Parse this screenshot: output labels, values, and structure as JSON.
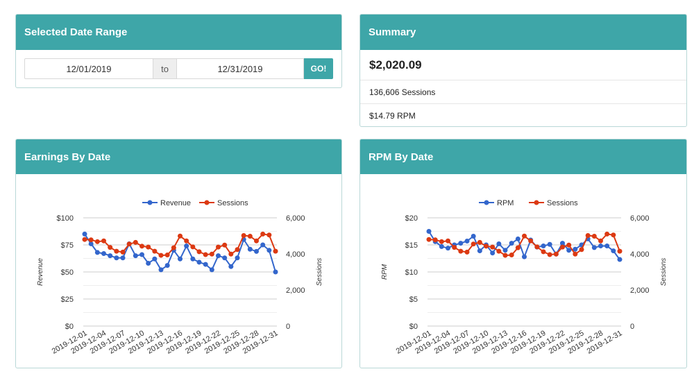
{
  "date_range": {
    "title": "Selected Date Range",
    "start_value": "12/01/2019",
    "to_label": "to",
    "end_value": "12/31/2019",
    "go_label": "GO!"
  },
  "summary": {
    "title": "Summary",
    "total": "$2,020.09",
    "sessions": "136,606 Sessions",
    "rpm": "$14.79 RPM"
  },
  "colors": {
    "header": "#3ea6a8",
    "blue": "#3366cc",
    "red": "#dc3912"
  },
  "earnings_panel": {
    "title": "Earnings By Date"
  },
  "rpm_panel": {
    "title": "RPM By Date"
  },
  "chart_data": [
    {
      "type": "line",
      "x": [
        "2019-12-01",
        "2019-12-02",
        "2019-12-03",
        "2019-12-04",
        "2019-12-05",
        "2019-12-06",
        "2019-12-07",
        "2019-12-08",
        "2019-12-09",
        "2019-12-10",
        "2019-12-11",
        "2019-12-12",
        "2019-12-13",
        "2019-12-14",
        "2019-12-15",
        "2019-12-16",
        "2019-12-17",
        "2019-12-18",
        "2019-12-19",
        "2019-12-20",
        "2019-12-21",
        "2019-12-22",
        "2019-12-23",
        "2019-12-24",
        "2019-12-25",
        "2019-12-26",
        "2019-12-27",
        "2019-12-28",
        "2019-12-29",
        "2019-12-30",
        "2019-12-31"
      ],
      "x_tick_labels": [
        "2019-12-01",
        "2019-12-04",
        "2019-12-07",
        "2019-12-10",
        "2019-12-13",
        "2019-12-16",
        "2019-12-19",
        "2019-12-22",
        "2019-12-25",
        "2019-12-28",
        "2019-12-31"
      ],
      "series": [
        {
          "name": "Revenue",
          "axis": "left",
          "color": "#3366cc",
          "values": [
            85,
            76,
            68,
            67,
            65,
            63,
            63,
            76,
            65,
            66,
            58,
            62,
            52,
            56,
            70,
            62,
            74,
            62,
            59,
            57,
            52,
            65,
            63,
            55,
            63,
            80,
            71,
            69,
            75,
            70,
            50
          ]
        },
        {
          "name": "Sessions",
          "axis": "right",
          "color": "#dc3912",
          "values": [
            4800,
            4780,
            4680,
            4720,
            4360,
            4150,
            4100,
            4550,
            4640,
            4430,
            4380,
            4150,
            3920,
            3940,
            4340,
            4990,
            4720,
            4390,
            4120,
            3960,
            3990,
            4380,
            4490,
            3990,
            4240,
            5020,
            4980,
            4720,
            5100,
            5050,
            4150
          ]
        }
      ],
      "ylabel": "Revenue",
      "y2label": "Sessions",
      "ylim": [
        0,
        100
      ],
      "y2lim": [
        0,
        6000
      ],
      "y_ticks": [
        "$0",
        "$25",
        "$50",
        "$75",
        "$100"
      ],
      "y2_ticks": [
        "0",
        "2,000",
        "4,000",
        "6,000"
      ],
      "legend": "top",
      "grid": true
    },
    {
      "type": "line",
      "x": [
        "2019-12-01",
        "2019-12-02",
        "2019-12-03",
        "2019-12-04",
        "2019-12-05",
        "2019-12-06",
        "2019-12-07",
        "2019-12-08",
        "2019-12-09",
        "2019-12-10",
        "2019-12-11",
        "2019-12-12",
        "2019-12-13",
        "2019-12-14",
        "2019-12-15",
        "2019-12-16",
        "2019-12-17",
        "2019-12-18",
        "2019-12-19",
        "2019-12-20",
        "2019-12-21",
        "2019-12-22",
        "2019-12-23",
        "2019-12-24",
        "2019-12-25",
        "2019-12-26",
        "2019-12-27",
        "2019-12-28",
        "2019-12-29",
        "2019-12-30",
        "2019-12-31"
      ],
      "x_tick_labels": [
        "2019-12-01",
        "2019-12-04",
        "2019-12-07",
        "2019-12-10",
        "2019-12-13",
        "2019-12-16",
        "2019-12-19",
        "2019-12-22",
        "2019-12-25",
        "2019-12-28",
        "2019-12-31"
      ],
      "series": [
        {
          "name": "RPM",
          "axis": "left",
          "color": "#3366cc",
          "values": [
            17.5,
            15.6,
            14.7,
            14.4,
            15.0,
            15.3,
            15.7,
            16.6,
            13.9,
            15.0,
            13.5,
            15.2,
            14.0,
            15.3,
            16.1,
            12.8,
            15.9,
            14.6,
            14.8,
            15.1,
            13.3,
            15.3,
            14.0,
            14.2,
            15.0,
            16.1,
            14.5,
            14.8,
            14.8,
            13.9,
            12.3
          ]
        },
        {
          "name": "Sessions",
          "axis": "right",
          "color": "#dc3912",
          "values": [
            4800,
            4780,
            4680,
            4720,
            4360,
            4150,
            4100,
            4550,
            4640,
            4430,
            4380,
            4150,
            3920,
            3940,
            4340,
            4990,
            4720,
            4390,
            4120,
            3960,
            3990,
            4380,
            4490,
            3990,
            4240,
            5020,
            4980,
            4720,
            5100,
            5050,
            4150
          ]
        }
      ],
      "ylabel": "RPM",
      "y2label": "Sessions",
      "ylim": [
        0,
        20
      ],
      "y2lim": [
        0,
        6000
      ],
      "y_ticks": [
        "$0",
        "$5",
        "$10",
        "$15",
        "$20"
      ],
      "y2_ticks": [
        "0",
        "2,000",
        "4,000",
        "6,000"
      ],
      "legend": "top",
      "grid": true
    }
  ]
}
